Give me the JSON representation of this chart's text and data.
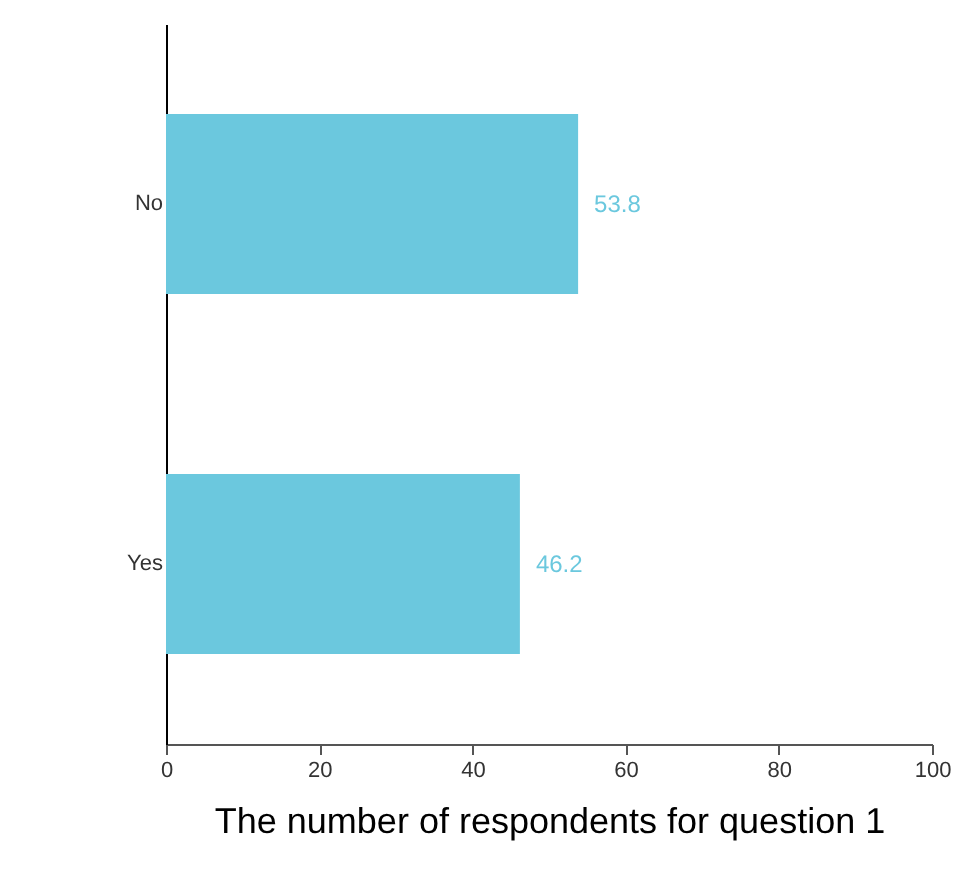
{
  "chart_data": {
    "type": "bar",
    "orientation": "horizontal",
    "xlabel": "The number of respondents for question 1",
    "categories": [
      "No",
      "Yes"
    ],
    "values": [
      53.8,
      46.2
    ],
    "color": "#6bc8de",
    "data_labels": true,
    "xlim": [
      0,
      100
    ],
    "xticks": [
      0,
      20,
      40,
      60,
      80,
      100
    ],
    "grid": false
  }
}
